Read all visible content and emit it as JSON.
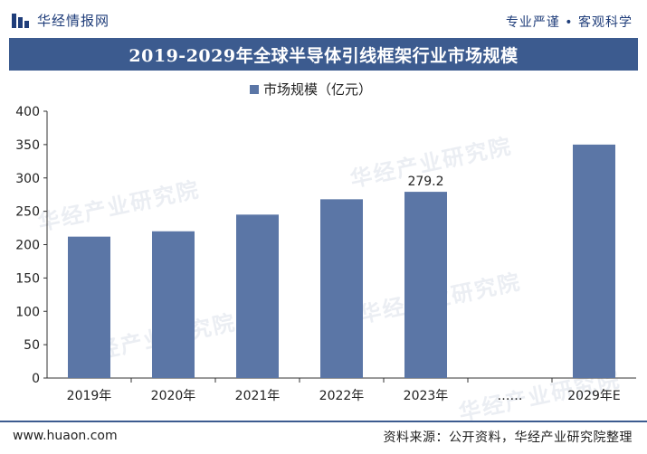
{
  "header": {
    "logo_text": "华经情报网",
    "slogan": "专业严谨 • 客观科学"
  },
  "watermark": "华经产业研究院",
  "colors": {
    "brand": "#3c5b8f",
    "bar": "#5b76a6"
  },
  "chart_data": {
    "type": "bar",
    "title": "2019-2029年全球半导体引线框架行业市场规模",
    "legend": "市场规模（亿元）",
    "categories": [
      "2019年",
      "2020年",
      "2021年",
      "2022年",
      "2023年",
      "……",
      "2029年E"
    ],
    "values": [
      212,
      220,
      245,
      268,
      279.2,
      null,
      350
    ],
    "data_labels": [
      "",
      "",
      "",
      "",
      "279.2",
      "",
      ""
    ],
    "ylim": [
      0,
      400
    ],
    "yticks": [
      0,
      50,
      100,
      150,
      200,
      250,
      300,
      350,
      400
    ],
    "grid": false,
    "legend_position": "top-center"
  },
  "footer": {
    "site": "www.huaon.com",
    "source": "资料来源：公开资料，华经产业研究院整理"
  }
}
